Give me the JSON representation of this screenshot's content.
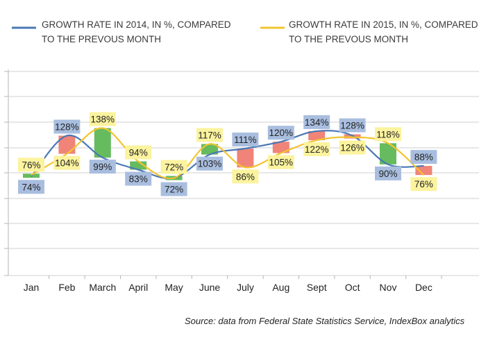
{
  "chart_data": {
    "type": "line",
    "categories": [
      "Jan",
      "Feb",
      "March",
      "April",
      "May",
      "June",
      "July",
      "Aug",
      "Sept",
      "Oct",
      "Nov",
      "Dec"
    ],
    "series": [
      {
        "name": "GROWTH RATE IN 2014, IN %, COMPARED TO THE PREVOUS MONTH",
        "values": [
          74,
          128,
          99,
          83,
          72,
          103,
          111,
          120,
          134,
          128,
          90,
          88
        ],
        "color": "#4a78b5"
      },
      {
        "name": "GROWTH RATE IN 2015, IN %, COMPARED TO THE PREVOUS MONTH",
        "values": [
          76,
          104,
          138,
          94,
          72,
          117,
          86,
          105,
          122,
          126,
          118,
          76
        ],
        "color": "#f2c42f"
      }
    ],
    "data_labels": {
      "2014": [
        "74%",
        "128%",
        "99%",
        "83%",
        "72%",
        "103%",
        "111%",
        "120%",
        "134%",
        "128%",
        "90%",
        "88%"
      ],
      "2015": [
        "76%",
        "104%",
        "138%",
        "94%",
        "72%",
        "117%",
        "86%",
        "105%",
        "122%",
        "126%",
        "118%",
        "76%"
      ]
    },
    "legend": {
      "line1_a": "GROWTH RATE IN 2014, IN %, COMPARED",
      "line1_b": "TO THE PREVOUS MONTH",
      "line2_a": "GROWTH RATE IN 2015, IN %, COMPARED",
      "line2_b": "TO THE PREVOUS MONTH"
    },
    "increase_color": "#66bb5e",
    "decrease_color": "#f08478",
    "label_bg_2014": "#a9bedf",
    "label_bg_2015": "#fbf39e",
    "ylim": [
      0,
      160
    ],
    "grid": true,
    "source": "Source: data from Federal State Statistics Service, IndexBox analytics"
  }
}
